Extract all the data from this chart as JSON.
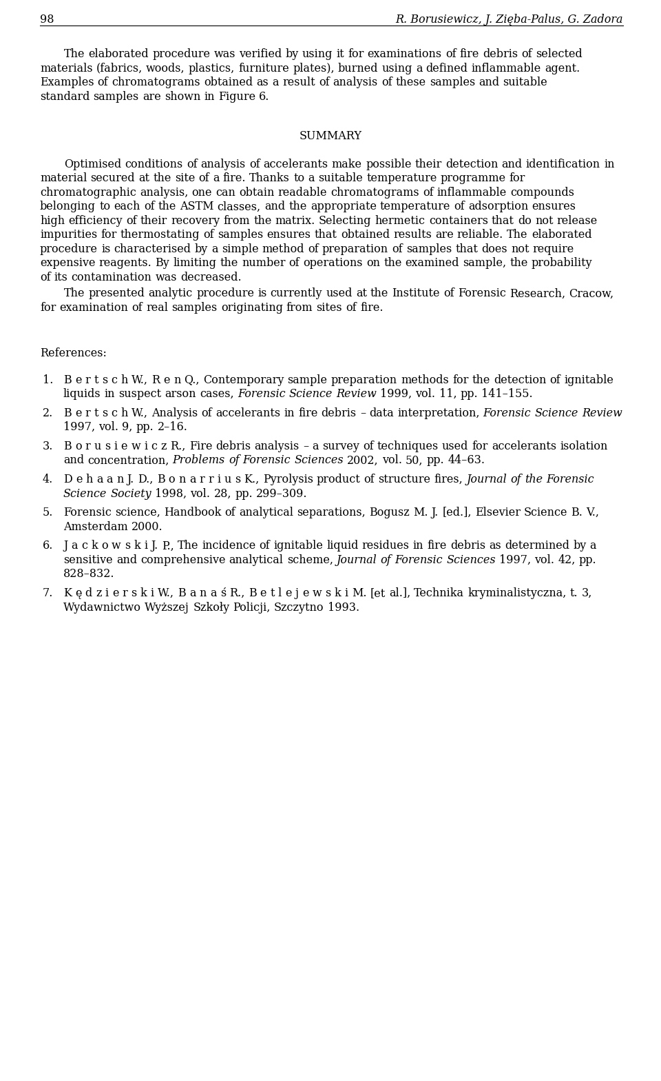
{
  "page_number": "98",
  "header_right": "R. Borusiewicz, J. Zięba-Palus, G. Zadora",
  "background_color": "#ffffff",
  "text_color": "#000000",
  "paragraph1": "The elaborated procedure was verified by using it for examinations of fire debris of selected materials (fabrics, woods, plastics, furniture plates), burned using a defined inflammable agent. Examples of chromatograms obtained as a result of analysis of these samples and suitable standard samples are shown in Figure 6.",
  "summary_title": "SUMMARY",
  "summary_p1": "Optimised conditions of analysis of accelerants make possible their detection and identification in material secured at the site of a fire. Thanks to a suitable temperature programme for chromatographic analysis, one can obtain readable chromatograms of inflammable compounds belonging to each of the ASTM classes, and the appropriate temperature of adsorption ensures high efficiency of their recovery from the matrix. Selecting hermetic containers that do not release impurities for thermostating of samples ensures that obtained results are reliable. The elaborated procedure is characterised by a simple method of preparation of samples that does not require expensive reagents. By limiting the number of operations on the examined sample, the probability of its contamination was decreased.",
  "summary_p2": "The presented analytic procedure is currently used at the Institute of Forensic Research, Cracow, for examination of real samples originating from sites of fire.",
  "references_title": "References:",
  "references": [
    {
      "num": "1.",
      "spaced_prefix": "B e r t s c h  W.,  R e n  Q.,",
      "normal_after_spaced": " Contemporary sample preparation methods for the detection of ignitable liquids in suspect arson cases, ",
      "italic": "Forensic Science Review",
      "normal_end": " 1999, vol. 11, pp. 141–155."
    },
    {
      "num": "2.",
      "spaced_prefix": "B e r t s c h  W.,",
      "normal_after_spaced": " Analysis of accelerants in fire debris – data interpretation, ",
      "italic": "Forensic Science Review",
      "normal_end": " 1997, vol. 9, pp. 2–16."
    },
    {
      "num": "3.",
      "spaced_prefix": "B o r u s i e w i c z  R.,",
      "normal_after_spaced": " Fire debris analysis – a survey of techniques used for accelerants isolation and concentration, ",
      "italic": "Problems of Forensic Sciences",
      "normal_end": " 2002, vol. 50, pp. 44–63."
    },
    {
      "num": "4.",
      "spaced_prefix": "D e h a a n  J. D.,  B o n a r r i u s  K.,",
      "normal_after_spaced": " Pyrolysis product of structure fires, ",
      "italic": "Journal of the Forensic Science Society",
      "normal_end": " 1998, vol. 28, pp. 299–309."
    },
    {
      "num": "5.",
      "spaced_prefix": "",
      "normal_after_spaced": "Forensic science, Handbook of analytical separations, Bogusz M. J. [ed.], Elsevier Science B. V., Amsterdam 2000.",
      "italic": "",
      "normal_end": ""
    },
    {
      "num": "6.",
      "spaced_prefix": "J a c k o w s k i  J. P.,",
      "normal_after_spaced": " The incidence of ignitable liquid residues in fire debris as determined by a sensitive and comprehensive analytical scheme, ",
      "italic": "Journal of Forensic Sciences",
      "normal_end": " 1997, vol. 42, pp. 828–832."
    },
    {
      "num": "7.",
      "spaced_prefix": "K ę d z i e r s k i  W.,  B a n a ś  R.,  B e t l e j e w s k i  M.",
      "normal_after_spaced": " [et al.], Technika kryminalistyczna, t. 3, Wydawnictwo Wyższej Szkoły Policji, Szczytno 1993.",
      "italic": "",
      "normal_end": ""
    }
  ]
}
